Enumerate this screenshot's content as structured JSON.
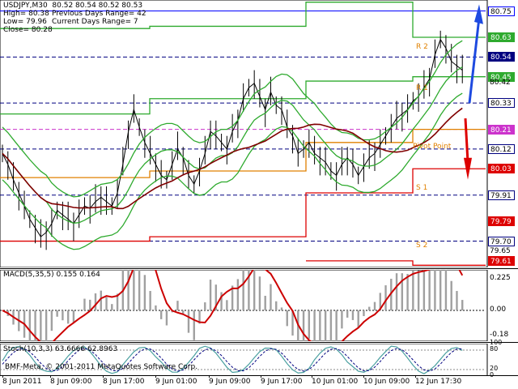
{
  "symbol_header": "USDJPY,M30  80.52 80.54 80.52 80.53",
  "info": {
    "high": "High= 80.38",
    "low": "Low= 79.96",
    "close": "Close= 80.28",
    "prev_range": "Previous Days Range= 42",
    "cur_range": "Current Days Range= 7"
  },
  "level_labels": {
    "r2": "R 2",
    "r1": "R 1",
    "pivot": "Pivot Point",
    "s1": "S 1",
    "s2": "S 2"
  },
  "price_labels": [
    {
      "text": "80.75",
      "bg": "#ffffff",
      "fg": "#000000",
      "border": "#0000ff",
      "price": 80.75
    },
    {
      "text": "80.63",
      "bg": "#2eaa2e",
      "fg": "#ffffff",
      "border": "#2eaa2e",
      "price": 80.63
    },
    {
      "text": "80.54",
      "bg": "#000080",
      "fg": "#ffffff",
      "border": "#000080",
      "price": 80.54
    },
    {
      "text": "80.45",
      "bg": "#2eaa2e",
      "fg": "#ffffff",
      "border": "#2eaa2e",
      "price": 80.45
    },
    {
      "text": "80.33",
      "bg": "#ffffff",
      "fg": "#000000",
      "border": "#000080",
      "price": 80.33
    },
    {
      "text": "80.21",
      "bg": "#cc33cc",
      "fg": "#ffffff",
      "border": "#cc33cc",
      "price": 80.21
    },
    {
      "text": "80.12",
      "bg": "#ffffff",
      "fg": "#000000",
      "border": "#000080",
      "price": 80.12
    },
    {
      "text": "80.03",
      "bg": "#dd0000",
      "fg": "#ffffff",
      "border": "#dd0000",
      "price": 80.03
    },
    {
      "text": "79.91",
      "bg": "#ffffff",
      "fg": "#000000",
      "border": "#000080",
      "price": 79.91
    },
    {
      "text": "79.79",
      "bg": "#dd0000",
      "fg": "#ffffff",
      "border": "#dd0000",
      "price": 79.79
    },
    {
      "text": "79.70",
      "bg": "#ffffff",
      "fg": "#000000",
      "border": "#000080",
      "price": 79.7
    },
    {
      "text": "79.61",
      "bg": "#dd0000",
      "fg": "#ffffff",
      "border": "#dd0000",
      "price": 79.61
    }
  ],
  "price_ticks": [
    {
      "text": "80.42",
      "price": 80.42
    },
    {
      "text": "79.65",
      "price": 79.65
    }
  ],
  "macd": {
    "title": "MACD(5,35,5) 0.155 0.164",
    "ticks": [
      {
        "text": "0.225",
        "value": 0.225
      },
      {
        "text": "0.00",
        "value": 0
      },
      {
        "text": "-0.18",
        "value": -0.18
      }
    ]
  },
  "stoch": {
    "title": "Stoch(10,3,3) 63.6666 62.8963",
    "ticks": [
      {
        "text": "100",
        "value": 100
      },
      {
        "text": "80",
        "value": 80
      },
      {
        "text": "20",
        "value": 20
      },
      {
        "text": "0",
        "value": 0
      }
    ]
  },
  "copyright": "BMF-Meta, © 2001-2011 MetaQuotes Software Corp.",
  "x_labels": [
    {
      "text": "8 Jun 2011",
      "pos": 3
    },
    {
      "text": "8 Jun 09:00",
      "pos": 62
    },
    {
      "text": "8 Jun 17:00",
      "pos": 127
    },
    {
      "text": "9 Jun 01:00",
      "pos": 192
    },
    {
      "text": "9 Jun 09:00",
      "pos": 258
    },
    {
      "text": "9 Jun 17:00",
      "pos": 322
    },
    {
      "text": "10 Jun 01:00",
      "pos": 385
    },
    {
      "text": "10 Jun 09:00",
      "pos": 449
    },
    {
      "text": "12 Jun 17:30",
      "pos": 513
    }
  ],
  "colors": {
    "resistance": "#2eaa2e",
    "support": "#dd0000",
    "pivot": "#e08000",
    "price": "#000000",
    "ma_slow": "#800000",
    "bands": "#2eaa2e",
    "macd_hist": "#a0a0a0",
    "macd_signal": "#cc0000",
    "stoch_main": "#4aa0a0",
    "stoch_signal": "#000080",
    "arrow_up": "#1e4ae0",
    "arrow_down": "#dd0000"
  }
}
